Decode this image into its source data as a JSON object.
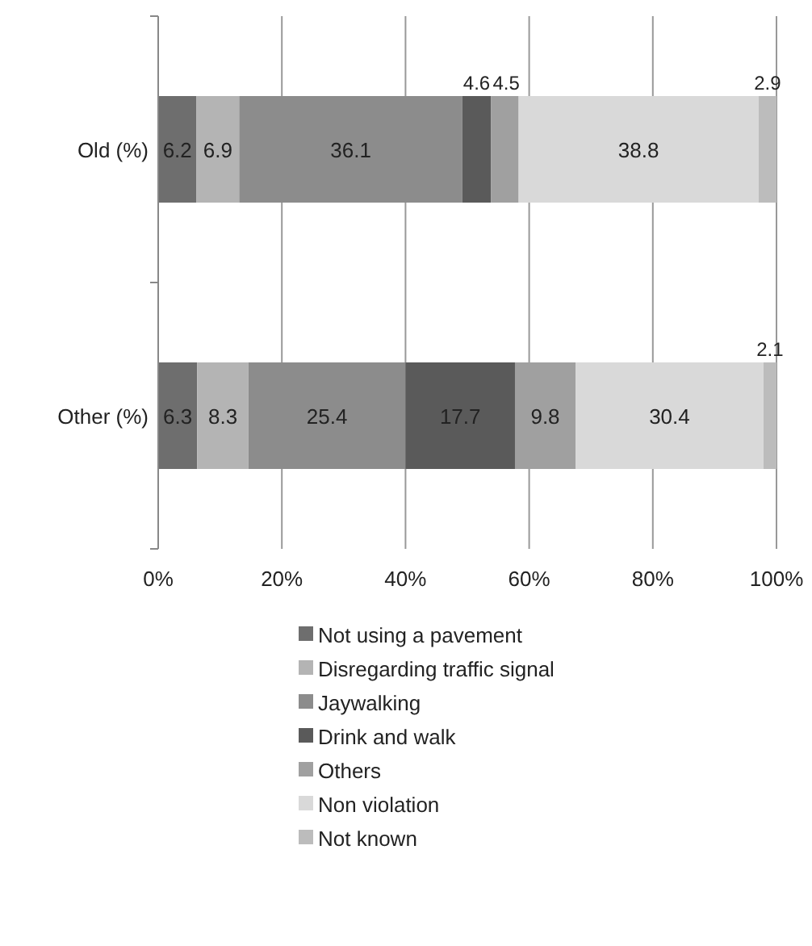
{
  "chart_data": {
    "type": "bar",
    "orientation": "horizontal",
    "stacked": true,
    "categories": [
      "Old (%)",
      "Other (%)"
    ],
    "series": [
      {
        "name": "Not using a pavement",
        "color": "#6e6e6e",
        "values": [
          6.2,
          6.3
        ]
      },
      {
        "name": "Disregarding traffic  signal",
        "color": "#b4b4b4",
        "values": [
          6.9,
          8.3
        ]
      },
      {
        "name": "Jaywalking",
        "color": "#8c8c8c",
        "values": [
          36.1,
          25.4
        ]
      },
      {
        "name": "Drink and walk",
        "color": "#5a5a5a",
        "values": [
          4.6,
          17.7
        ]
      },
      {
        "name": "Others",
        "color": "#a0a0a0",
        "values": [
          4.5,
          9.8
        ]
      },
      {
        "name": "Non violation",
        "color": "#d9d9d9",
        "values": [
          38.8,
          30.4
        ]
      },
      {
        "name": "Not known",
        "color": "#bcbcbc",
        "values": [
          2.9,
          2.1
        ]
      }
    ],
    "xlim": [
      0,
      100
    ],
    "xticks": [
      {
        "value": 0,
        "label": "0%"
      },
      {
        "value": 20,
        "label": "20%"
      },
      {
        "value": 40,
        "label": "40%"
      },
      {
        "value": 60,
        "label": "60%"
      },
      {
        "value": 80,
        "label": "80%"
      },
      {
        "value": 100,
        "label": "100%"
      }
    ],
    "grid": "x",
    "data_labels": true,
    "legend": "bottom"
  }
}
